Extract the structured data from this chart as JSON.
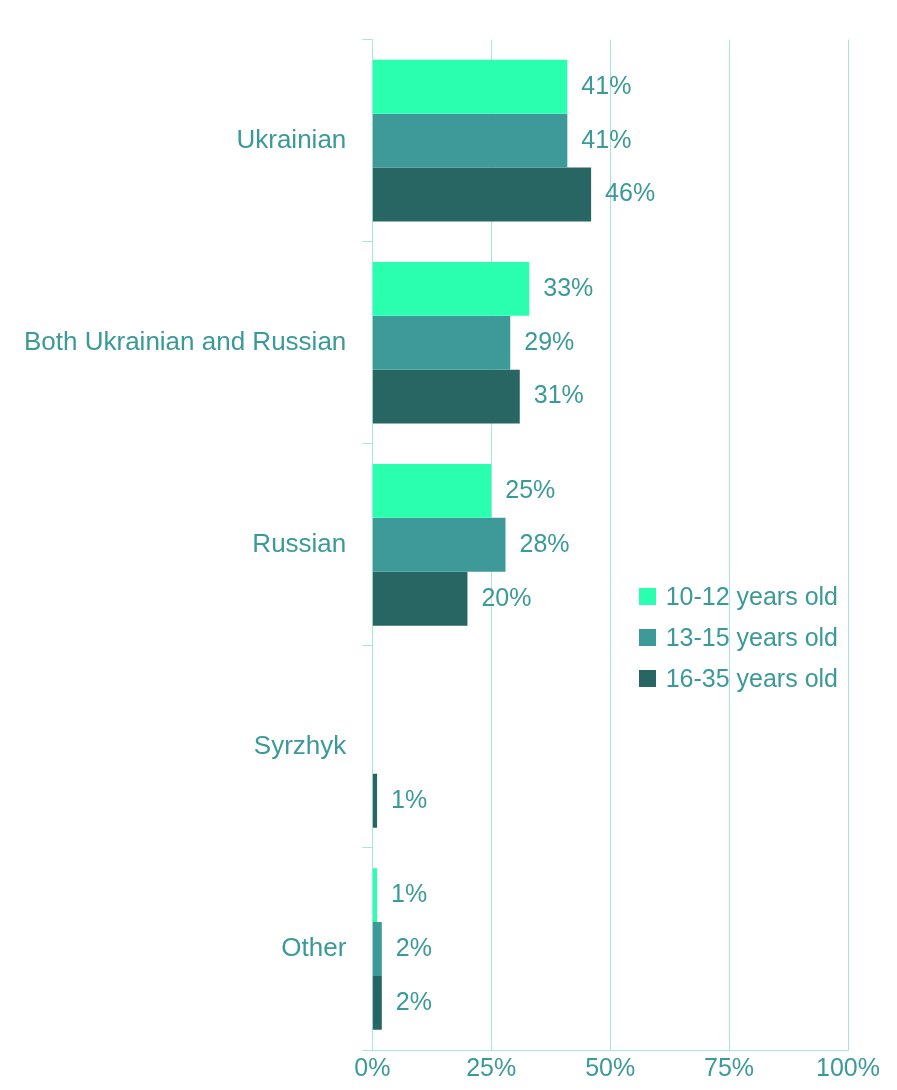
{
  "chart_data": {
    "type": "bar",
    "orientation": "horizontal",
    "categories": [
      "Ukrainian",
      "Both Ukrainian and Russian",
      "Russian",
      "Syrzhyk",
      "Other"
    ],
    "series": [
      {
        "name": "10-12 years old",
        "color": "#2affb0",
        "values": [
          41,
          33,
          25,
          null,
          1
        ]
      },
      {
        "name": "13-15 years old",
        "color": "#3d9a98",
        "values": [
          41,
          29,
          28,
          null,
          2
        ]
      },
      {
        "name": "16-35 years old",
        "color": "#276663",
        "values": [
          46,
          31,
          20,
          1,
          2
        ]
      }
    ],
    "xlim": [
      0,
      100
    ],
    "xticks": [
      {
        "value": 0,
        "label": "0%"
      },
      {
        "value": 25,
        "label": "25%"
      },
      {
        "value": 50,
        "label": "50%"
      },
      {
        "value": 75,
        "label": "75%"
      },
      {
        "value": 100,
        "label": "100%"
      }
    ],
    "value_labels": [
      [
        "41%",
        "33%",
        "25%",
        null,
        "1%"
      ],
      [
        "41%",
        "29%",
        "28%",
        null,
        "2%"
      ],
      [
        "46%",
        "31%",
        "20%",
        "1%",
        "2%"
      ]
    ],
    "grid": "x",
    "legend": "right"
  }
}
